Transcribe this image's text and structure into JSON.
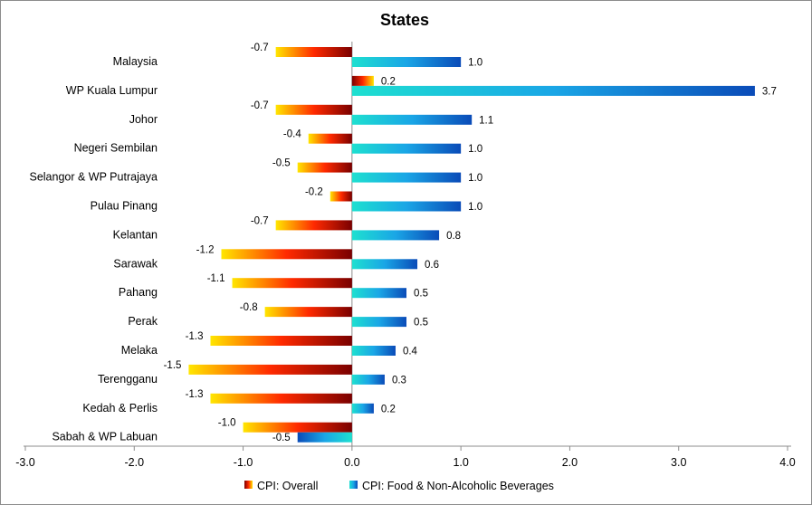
{
  "chart_data": {
    "type": "bar",
    "orientation": "horizontal",
    "title": "States",
    "categories": [
      "Malaysia",
      "WP Kuala Lumpur",
      "Johor",
      "Negeri  Sembilan",
      "Selangor  & WP Putrajaya",
      "Pulau Pinang",
      "Kelantan",
      "Sarawak",
      "Pahang",
      "Perak",
      "Melaka",
      "Terengganu",
      "Kedah & Perlis",
      "Sabah & WP Labuan"
    ],
    "series": [
      {
        "name": "CPI: Overall",
        "values": [
          -0.7,
          0.2,
          -0.7,
          -0.4,
          -0.5,
          -0.2,
          -0.7,
          -1.2,
          -1.1,
          -0.8,
          -1.3,
          -1.5,
          -1.3,
          -1.0
        ],
        "labels": [
          "-0.7",
          "0.2",
          "-0.7",
          "-0.4",
          "-0.5",
          "-0.2",
          "-0.7",
          "-1.2",
          "-1.1",
          "-0.8",
          "-1.3",
          "-1.5",
          "-1.3",
          "-1.0"
        ],
        "gradient": [
          "#ffe600",
          "#ff2a00",
          "#7a0000"
        ]
      },
      {
        "name": "CPI: Food & Non-Alcoholic Beverages",
        "values": [
          1.0,
          3.7,
          1.1,
          1.0,
          1.0,
          1.0,
          0.8,
          0.6,
          0.5,
          0.5,
          0.4,
          0.3,
          0.2,
          -0.5
        ],
        "labels": [
          "1.0",
          "3.7",
          "1.1",
          "1.0",
          "1.0",
          "1.0",
          "0.8",
          "0.6",
          "0.5",
          "0.5",
          "0.4",
          "0.3",
          "0.2",
          "-0.5"
        ],
        "gradient": [
          "#1ee0d0",
          "#1aa6e6",
          "#0a4bb8"
        ]
      }
    ],
    "xlim": [
      -3.0,
      4.0
    ],
    "xticks": [
      "-3.0",
      "-2.0",
      "-1.0",
      "0.0",
      "1.0",
      "2.0",
      "3.0",
      "4.0"
    ],
    "grid": false,
    "legend_position": "bottom",
    "colors": {
      "axis": "#8c8c8c",
      "frame": "#8c8c8c"
    }
  }
}
